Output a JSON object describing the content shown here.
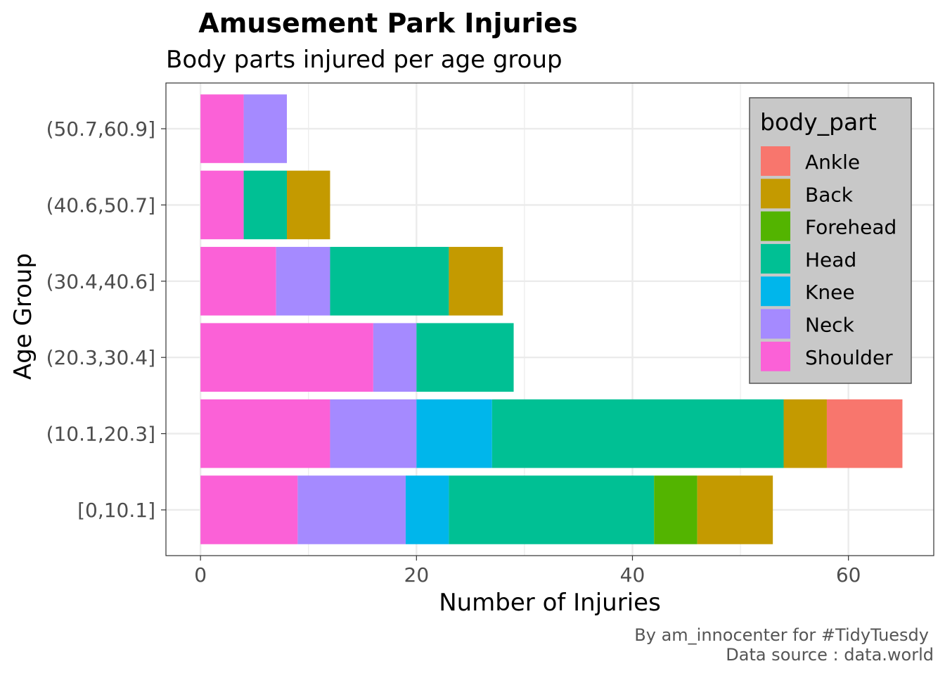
{
  "chart_data": {
    "type": "bar",
    "orientation": "horizontal",
    "stacked": true,
    "title": "Amusement Park Injuries",
    "subtitle": "Body parts injured per age group",
    "xlabel": "Number of Injuries",
    "ylabel": "Age Group",
    "xlim": [
      -3.2,
      67.9
    ],
    "xticks": [
      0,
      20,
      40,
      60
    ],
    "grid": true,
    "legend": {
      "title": "body_part",
      "position": "top-right",
      "entries": [
        "Ankle",
        "Back",
        "Forehead",
        "Head",
        "Knee",
        "Neck",
        "Shoulder"
      ]
    },
    "colors": {
      "Ankle": "#F8766D",
      "Back": "#C49A00",
      "Forehead": "#53B400",
      "Head": "#00C094",
      "Knee": "#00B6EB",
      "Neck": "#A58AFF",
      "Shoulder": "#FB61D7"
    },
    "stack_order": [
      "Shoulder",
      "Neck",
      "Knee",
      "Head",
      "Forehead",
      "Back",
      "Ankle"
    ],
    "categories": [
      "[0,10.1]",
      "(10.1,20.3]",
      "(20.3,30.4]",
      "(30.4,40.6]",
      "(40.6,50.7]",
      "(50.7,60.9]"
    ],
    "series": [
      {
        "name": "Shoulder",
        "values": [
          9,
          12,
          16,
          7,
          4,
          4
        ]
      },
      {
        "name": "Neck",
        "values": [
          10,
          8,
          4,
          5,
          0,
          4
        ]
      },
      {
        "name": "Knee",
        "values": [
          4,
          7,
          0,
          0,
          0,
          0
        ]
      },
      {
        "name": "Head",
        "values": [
          19,
          27,
          9,
          11,
          4,
          0
        ]
      },
      {
        "name": "Forehead",
        "values": [
          4,
          0,
          0,
          0,
          0,
          0
        ]
      },
      {
        "name": "Back",
        "values": [
          7,
          4,
          0,
          5,
          4,
          0
        ]
      },
      {
        "name": "Ankle",
        "values": [
          0,
          7,
          0,
          0,
          0,
          0
        ]
      }
    ]
  },
  "caption": {
    "line1": "By am_innocenter for #TidyTuesdy",
    "line2": "Data source : data.world"
  }
}
